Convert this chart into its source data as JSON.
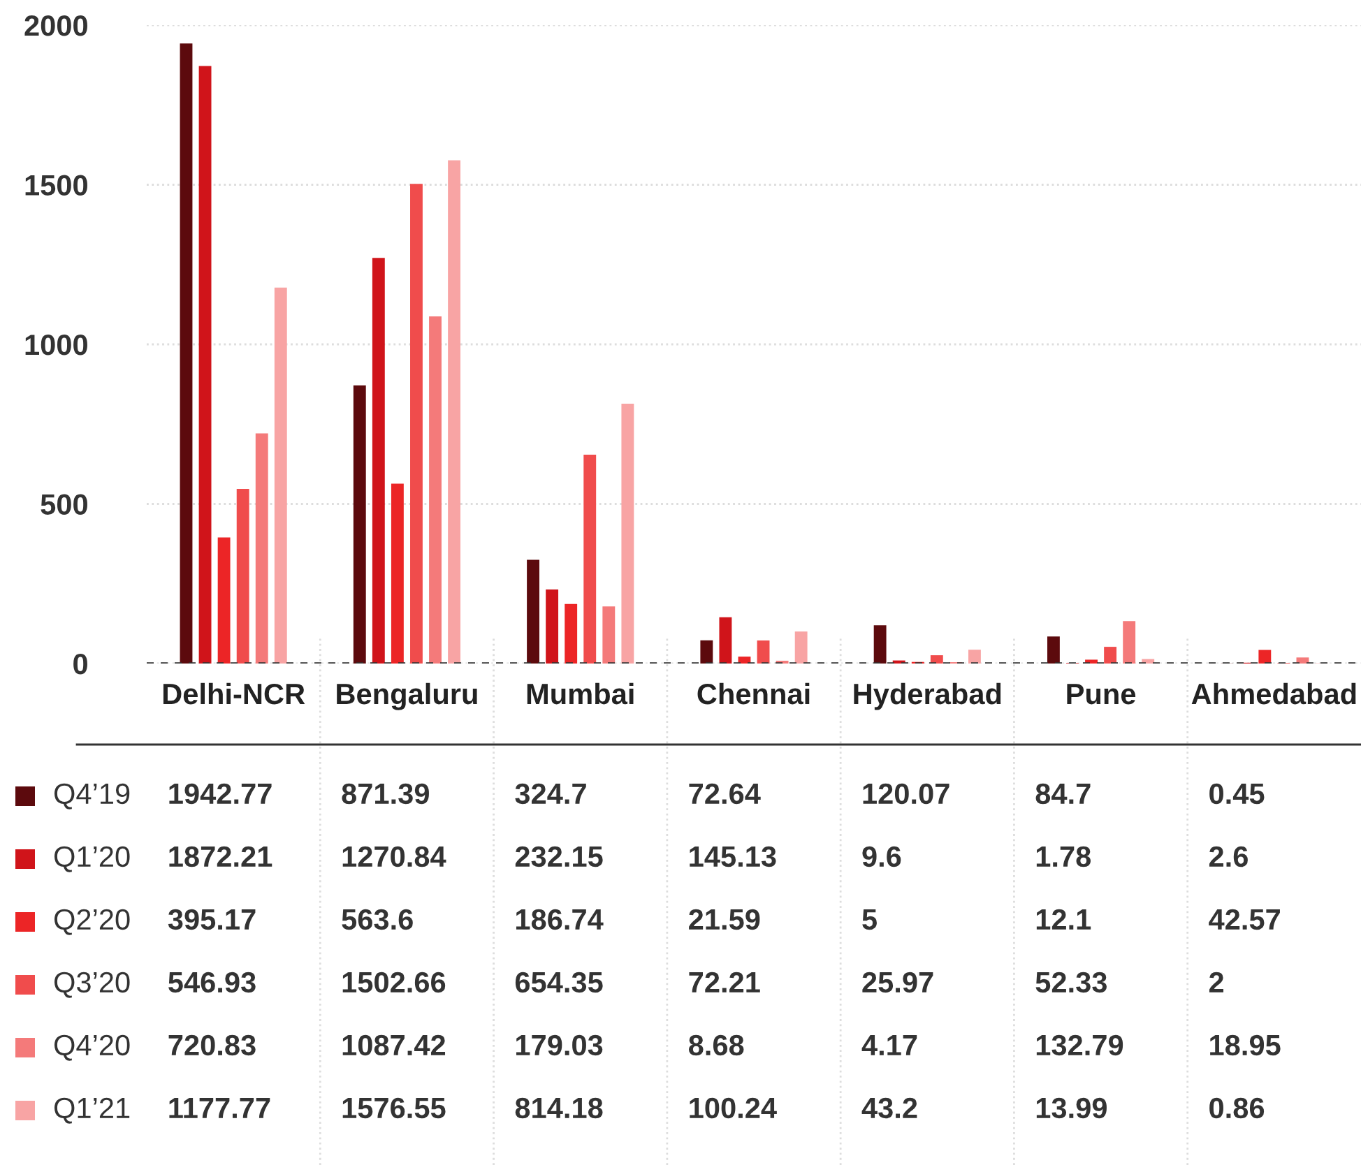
{
  "chart_data": {
    "type": "bar",
    "categories": [
      "Delhi-NCR",
      "Bengaluru",
      "Mumbai",
      "Chennai",
      "Hyderabad",
      "Pune",
      "Ahmedabad"
    ],
    "series": [
      {
        "name": "Q4’19",
        "color": "#5c0a0d",
        "values": [
          1942.77,
          871.39,
          324.7,
          72.64,
          120.07,
          84.7,
          0.45
        ]
      },
      {
        "name": "Q1’20",
        "color": "#d0141a",
        "values": [
          1872.21,
          1270.84,
          232.15,
          145.13,
          9.6,
          1.78,
          2.6
        ]
      },
      {
        "name": "Q2’20",
        "color": "#ec2526",
        "values": [
          395.17,
          563.6,
          186.74,
          21.59,
          5,
          12.1,
          42.57
        ]
      },
      {
        "name": "Q3’20",
        "color": "#f04c4c",
        "values": [
          546.93,
          1502.66,
          654.35,
          72.21,
          25.97,
          52.33,
          2
        ]
      },
      {
        "name": "Q4’20",
        "color": "#f47a7a",
        "values": [
          720.83,
          1087.42,
          179.03,
          8.68,
          4.17,
          132.79,
          18.95
        ]
      },
      {
        "name": "Q1’21",
        "color": "#f8a4a4",
        "values": [
          1177.77,
          1576.55,
          814.18,
          100.24,
          43.2,
          13.99,
          0.86
        ]
      }
    ],
    "ylim": [
      0,
      2000
    ],
    "yticks": [
      0,
      500,
      1000,
      1500,
      2000
    ],
    "grid": true,
    "legend": "bottom left",
    "data_labels": true,
    "ref_lines": [
      {
        "axis": "y",
        "value": 0,
        "color": "#333333",
        "line_style": "dashed"
      }
    ]
  }
}
